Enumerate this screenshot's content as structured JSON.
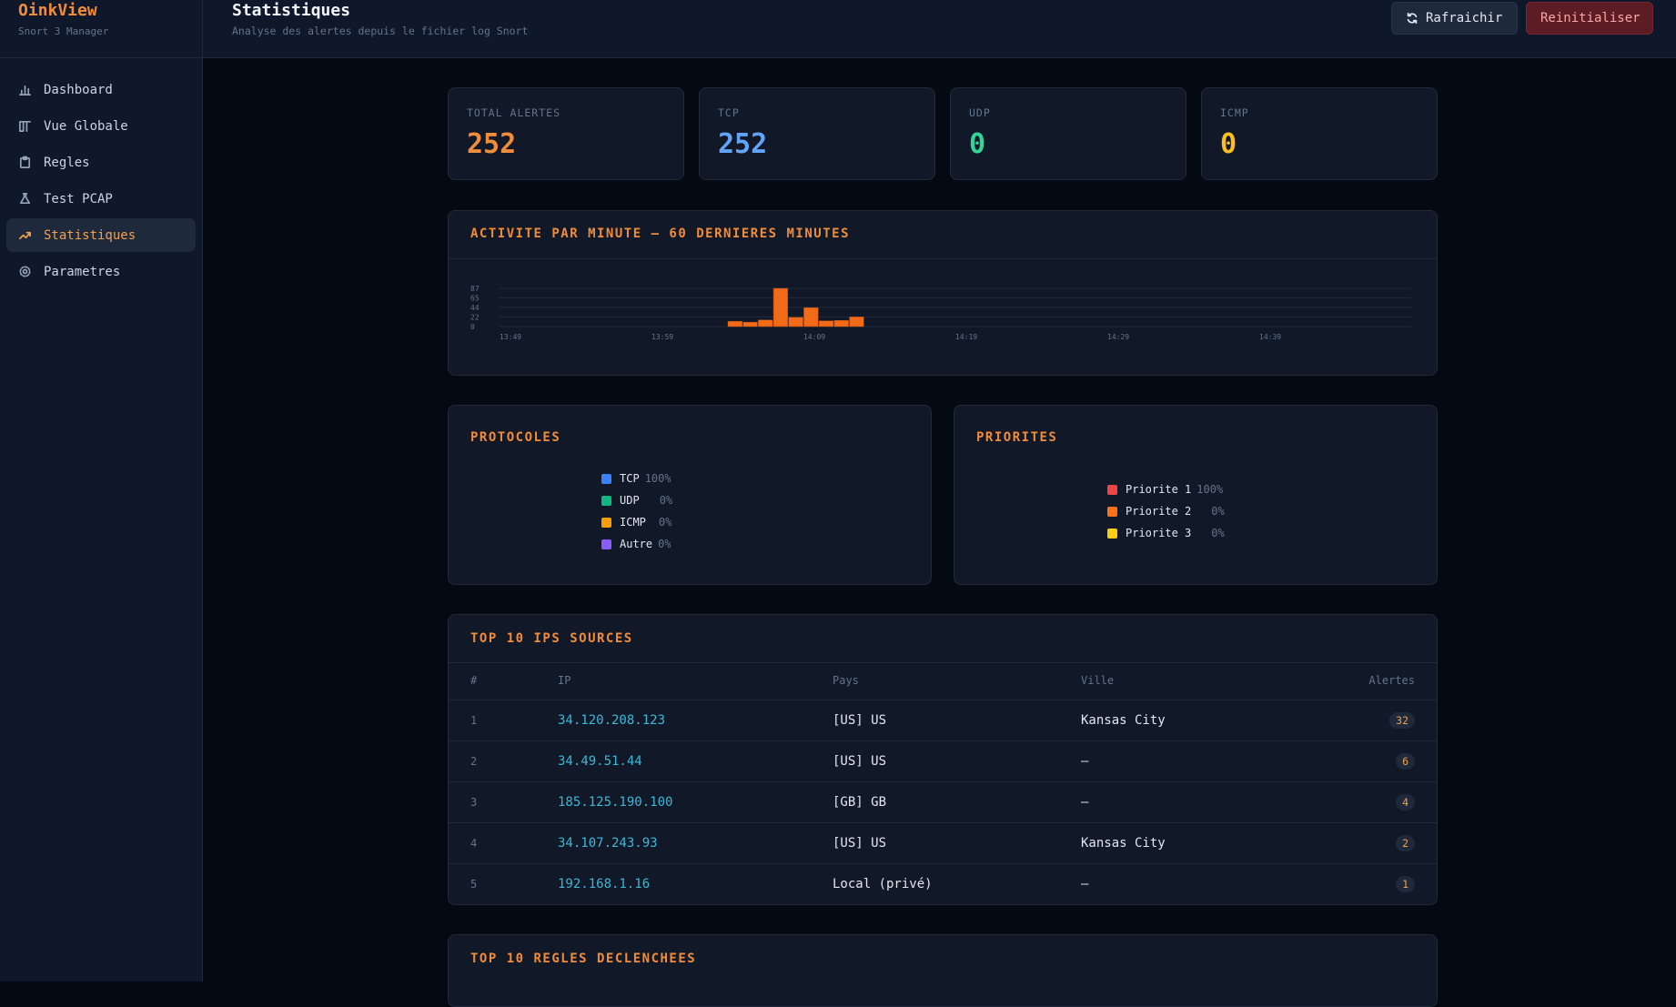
{
  "brand": {
    "title": "OinkView",
    "subtitle": "Snort 3 Manager"
  },
  "nav": [
    {
      "label": "Dashboard",
      "icon": "bar-chart-icon"
    },
    {
      "label": "Vue Globale",
      "icon": "columns-icon"
    },
    {
      "label": "Regles",
      "icon": "clipboard-icon"
    },
    {
      "label": "Test PCAP",
      "icon": "flask-icon"
    },
    {
      "label": "Statistiques",
      "icon": "trending-up-icon",
      "active": true
    },
    {
      "label": "Parametres",
      "icon": "gear-icon"
    }
  ],
  "header": {
    "title": "Statistiques",
    "subtitle": "Analyse des alertes depuis le fichier log Snort",
    "refresh_label": "Rafraichir",
    "reset_label": "Reinitialiser"
  },
  "stats": [
    {
      "label": "TOTAL ALERTES",
      "value": "252",
      "color": "#f08c3a"
    },
    {
      "label": "TCP",
      "value": "252",
      "color": "#60a5fa"
    },
    {
      "label": "UDP",
      "value": "0",
      "color": "#34d399"
    },
    {
      "label": "ICMP",
      "value": "0",
      "color": "#fbbf24"
    }
  ],
  "activity": {
    "title": "ACTIVITE PAR MINUTE — 60 DERNIERES MINUTES"
  },
  "protocols": {
    "title": "PROTOCOLES",
    "items": [
      {
        "label": "TCP",
        "pct": "100%",
        "color": "#3b82f6"
      },
      {
        "label": "UDP",
        "pct": "0%",
        "color": "#10b981"
      },
      {
        "label": "ICMP",
        "pct": "0%",
        "color": "#f59e0b"
      },
      {
        "label": "Autre",
        "pct": "0%",
        "color": "#8b5cf6"
      }
    ]
  },
  "priorities": {
    "title": "PRIORITES",
    "items": [
      {
        "label": "Priorite 1",
        "pct": "100%",
        "color": "#ef4444"
      },
      {
        "label": "Priorite 2",
        "pct": "0%",
        "color": "#f97316"
      },
      {
        "label": "Priorite 3",
        "pct": "0%",
        "color": "#facc15"
      }
    ]
  },
  "top_ips": {
    "title": "TOP 10 IPS SOURCES",
    "columns": [
      "#",
      "IP",
      "Pays",
      "Ville",
      "Alertes"
    ],
    "rows": [
      {
        "rank": "1",
        "ip": "34.120.208.123",
        "country": "[US] US",
        "city": "Kansas City",
        "alerts": "32"
      },
      {
        "rank": "2",
        "ip": "34.49.51.44",
        "country": "[US] US",
        "city": "—",
        "alerts": "6"
      },
      {
        "rank": "3",
        "ip": "185.125.190.100",
        "country": "[GB] GB",
        "city": "—",
        "alerts": "4"
      },
      {
        "rank": "4",
        "ip": "34.107.243.93",
        "country": "[US] US",
        "city": "Kansas City",
        "alerts": "2"
      },
      {
        "rank": "5",
        "ip": "192.168.1.16",
        "country": "Local (privé)",
        "city": "—",
        "alerts": "1"
      }
    ]
  },
  "top_rules": {
    "title": "TOP 10 REGLES DECLENCHEES"
  },
  "chart_data": {
    "type": "bar",
    "title": "ACTIVITE PAR MINUTE — 60 DERNIERES MINUTES",
    "x_ticks": [
      "13:49",
      "13:59",
      "14:09",
      "14:19",
      "14:29",
      "14:39"
    ],
    "y_ticks": [
      "0",
      "22",
      "44",
      "65",
      "87"
    ],
    "ylim": [
      0,
      87
    ],
    "bar_start_minute": 15,
    "values": [
      12,
      10,
      15,
      87,
      21,
      43,
      13,
      14,
      22
    ],
    "color": "#f06a18",
    "grid": true
  }
}
